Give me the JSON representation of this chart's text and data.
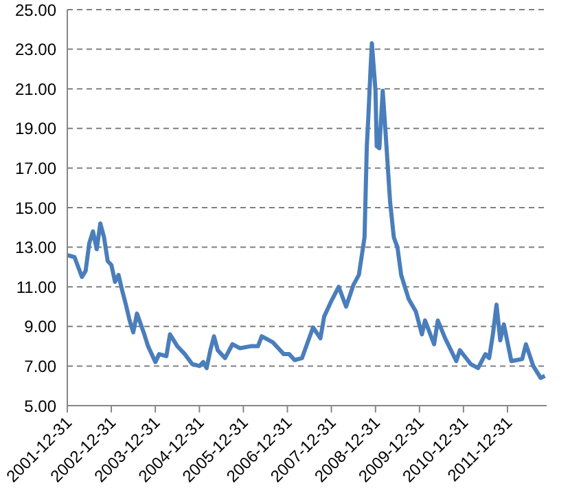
{
  "chart_data": {
    "type": "line",
    "x": [
      "2002-01-01",
      "2002-03-01",
      "2002-05-01",
      "2002-06-01",
      "2002-07-01",
      "2002-08-01",
      "2002-09-01",
      "2002-10-01",
      "2002-11-01",
      "2002-12-01",
      "2003-01-01",
      "2003-01-31",
      "2003-03-01",
      "2003-04-01",
      "2003-05-01",
      "2003-06-01",
      "2003-07-01",
      "2003-08-01",
      "2003-10-01",
      "2003-11-01",
      "2004-01-01",
      "2004-02-01",
      "2004-04-01",
      "2004-05-01",
      "2004-07-01",
      "2004-09-01",
      "2004-11-01",
      "2005-01-01",
      "2005-02-01",
      "2005-03-01",
      "2005-04-01",
      "2005-05-01",
      "2005-06-01",
      "2005-08-01",
      "2005-10-01",
      "2005-12-01",
      "2006-03-01",
      "2006-05-01",
      "2006-06-01",
      "2006-09-01",
      "2006-12-01",
      "2007-01-15",
      "2007-03-01",
      "2007-05-01",
      "2007-08-01",
      "2007-10-01",
      "2007-11-01",
      "2008-01-01",
      "2008-03-01",
      "2008-05-01",
      "2008-07-01",
      "2008-08-15",
      "2008-10-01",
      "2008-10-20",
      "2008-11-01",
      "2008-11-20",
      "2008-12-01",
      "2008-12-31",
      "2009-01-10",
      "2009-02-01",
      "2009-03-01",
      "2009-04-01",
      "2009-05-01",
      "2009-06-01",
      "2009-07-01",
      "2009-08-01",
      "2009-10-01",
      "2009-12-01",
      "2010-01-20",
      "2010-02-15",
      "2010-05-01",
      "2010-06-01",
      "2010-08-01",
      "2010-11-01",
      "2010-12-01",
      "2011-03-01",
      "2011-05-01",
      "2011-07-01",
      "2011-08-01",
      "2011-09-01",
      "2011-10-01",
      "2011-11-01",
      "2011-12-01",
      "2012-02-01",
      "2012-05-01",
      "2012-06-01",
      "2012-08-01",
      "2012-10-01",
      "2012-11-05"
    ],
    "series": [
      {
        "color": "#4a7ebb",
        "values": [
          12.6,
          12.5,
          11.5,
          11.8,
          13.2,
          13.8,
          12.9,
          14.2,
          13.5,
          12.3,
          12.1,
          11.25,
          11.6,
          10.8,
          10.1,
          9.3,
          8.7,
          9.65,
          8.6,
          8.0,
          7.2,
          7.6,
          7.5,
          8.6,
          8.0,
          7.6,
          7.1,
          7.0,
          7.2,
          6.9,
          7.8,
          8.5,
          7.8,
          7.4,
          8.1,
          7.9,
          8.0,
          8.0,
          8.5,
          8.2,
          7.6,
          7.6,
          7.3,
          7.4,
          8.95,
          8.4,
          9.5,
          10.3,
          11.0,
          10.0,
          11.1,
          11.6,
          13.5,
          18.1,
          19.5,
          22.0,
          23.3,
          20.9,
          18.1,
          18.0,
          20.9,
          18.1,
          15.3,
          13.5,
          13.0,
          11.6,
          10.4,
          9.75,
          8.6,
          9.3,
          8.1,
          9.3,
          8.4,
          7.25,
          7.8,
          7.1,
          6.9,
          7.6,
          7.4,
          8.6,
          10.1,
          8.3,
          9.1,
          7.25,
          7.35,
          8.1,
          7.0,
          6.4,
          6.5
        ]
      }
    ],
    "xlim": [
      "2001-12-31",
      "2012-11-20"
    ],
    "xticks": [
      "2001-12-31",
      "2002-12-31",
      "2003-12-31",
      "2004-12-31",
      "2005-12-31",
      "2006-12-31",
      "2007-12-31",
      "2008-12-31",
      "2009-12-31",
      "2010-12-31",
      "2011-12-31"
    ],
    "ylim": [
      5,
      25
    ],
    "yticks": [
      {
        "value": 5,
        "label": "5.00"
      },
      {
        "value": 7,
        "label": "7.00"
      },
      {
        "value": 9,
        "label": "9.00"
      },
      {
        "value": 11,
        "label": "11.00"
      },
      {
        "value": 13,
        "label": "13.00"
      },
      {
        "value": 15,
        "label": "15.00"
      },
      {
        "value": 17,
        "label": "17.00"
      },
      {
        "value": 19,
        "label": "19.00"
      },
      {
        "value": 21,
        "label": "21.00"
      },
      {
        "value": 23,
        "label": "23.00"
      },
      {
        "value": 25,
        "label": "25.00"
      }
    ],
    "grid": "y",
    "marker": "none",
    "line_style": "solid"
  }
}
